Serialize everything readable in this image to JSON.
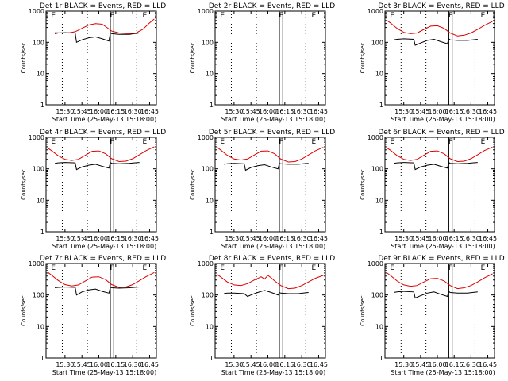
{
  "figure": {
    "colors": {
      "events": "#000000",
      "lld": "#dd0000",
      "axes": "#000000",
      "background": "#ffffff"
    }
  },
  "chart_data": [
    {
      "type": "line",
      "scale": "log",
      "grid": false,
      "title": "Det 1r BLACK = Events, RED = LLD",
      "xlabel": "Start Time (25-May-13 15:18:00)",
      "ylabel": "Counts/sec",
      "xticks": [
        "15:30",
        "15:45",
        "16:00",
        "16:15",
        "16:30",
        "16:45"
      ],
      "yticks": [
        "1",
        "10",
        "100",
        "1000"
      ],
      "ylim": [
        1,
        1000
      ],
      "markers": [
        "E",
        "F",
        "E"
      ],
      "series": [
        {
          "color": "#000000",
          "t": [
            15.35,
            15.4,
            15.5,
            15.65,
            15.67,
            15.75,
            15.85,
            15.95,
            16.05,
            16.15,
            16.17,
            16.19,
            16.3,
            16.45,
            16.52,
            16.6
          ],
          "values": [
            190,
            200,
            205,
            200,
            100,
            120,
            140,
            150,
            130,
            110,
            205,
            190,
            180,
            180,
            190,
            200
          ]
        },
        {
          "color": "#dd0000",
          "t": [
            15.35,
            15.45,
            15.55,
            15.65,
            15.75,
            15.85,
            15.95,
            16.05,
            16.12,
            16.19,
            16.3,
            16.45,
            16.55,
            16.65,
            16.75,
            16.82
          ],
          "values": [
            205,
            200,
            200,
            220,
            280,
            360,
            400,
            380,
            300,
            230,
            200,
            190,
            200,
            260,
            420,
            560
          ]
        }
      ]
    },
    {
      "type": "line",
      "scale": "log",
      "grid": false,
      "title": "Det 2r BLACK = Events, RED = LLD",
      "xlabel": "Start Time (25-May-13 15:18:00)",
      "ylabel": "Counts/sec",
      "xticks": [
        "15:30",
        "15:45",
        "16:00",
        "16:15",
        "16:30",
        "16:45"
      ],
      "yticks": [
        "1",
        "10",
        "100",
        "1000"
      ],
      "ylim": [
        1,
        1000
      ],
      "markers": [
        "E",
        "F",
        "E"
      ],
      "series": []
    },
    {
      "type": "line",
      "scale": "log",
      "grid": false,
      "title": "Det 3r BLACK = Events, RED = LLD",
      "xlabel": "Start Time (25-May-13 15:18:00)",
      "ylabel": "Counts/sec",
      "xticks": [
        "15:30",
        "15:45",
        "16:00",
        "16:15",
        "16:30",
        "16:45"
      ],
      "yticks": [
        "1",
        "10",
        "100",
        "1000"
      ],
      "ylim": [
        1,
        1000
      ],
      "markers": [
        "E",
        "F",
        "E"
      ],
      "series": [
        {
          "color": "#000000",
          "t": [
            15.35,
            15.4,
            15.5,
            15.65,
            15.67,
            15.75,
            15.85,
            15.95,
            16.05,
            16.15,
            16.17,
            16.19,
            16.3,
            16.45,
            16.52,
            16.6
          ],
          "values": [
            120,
            125,
            130,
            125,
            80,
            95,
            115,
            125,
            105,
            90,
            130,
            120,
            115,
            115,
            120,
            125
          ]
        },
        {
          "color": "#dd0000",
          "t": [
            15.25,
            15.3,
            15.4,
            15.5,
            15.6,
            15.7,
            15.8,
            15.9,
            16.0,
            16.1,
            16.19,
            16.3,
            16.4,
            16.5,
            16.6,
            16.7,
            16.82
          ],
          "values": [
            500,
            420,
            280,
            210,
            190,
            200,
            260,
            330,
            340,
            280,
            200,
            160,
            170,
            200,
            260,
            350,
            470
          ]
        }
      ]
    },
    {
      "type": "line",
      "scale": "log",
      "grid": false,
      "title": "Det 4r BLACK = Events, RED = LLD",
      "xlabel": "Start Time (25-May-13 15:18:00)",
      "ylabel": "Counts/sec",
      "xticks": [
        "15:30",
        "15:45",
        "16:00",
        "16:15",
        "16:30",
        "16:45"
      ],
      "yticks": [
        "1",
        "10",
        "100",
        "1000"
      ],
      "ylim": [
        1,
        1000
      ],
      "markers": [
        "E",
        "F",
        "E"
      ],
      "series": [
        {
          "color": "#000000",
          "t": [
            15.35,
            15.4,
            15.5,
            15.65,
            15.67,
            15.75,
            15.85,
            15.95,
            16.05,
            16.15,
            16.17,
            16.19,
            16.3,
            16.45,
            16.52,
            16.6
          ],
          "values": [
            150,
            155,
            160,
            155,
            95,
            115,
            130,
            140,
            120,
            105,
            160,
            150,
            145,
            150,
            155,
            160
          ]
        },
        {
          "color": "#dd0000",
          "t": [
            15.25,
            15.3,
            15.4,
            15.5,
            15.6,
            15.7,
            15.8,
            15.9,
            16.0,
            16.1,
            16.19,
            16.3,
            16.4,
            16.5,
            16.6,
            16.7,
            16.82
          ],
          "values": [
            450,
            380,
            260,
            200,
            185,
            200,
            270,
            360,
            370,
            300,
            210,
            170,
            175,
            210,
            280,
            380,
            500
          ]
        }
      ]
    },
    {
      "type": "line",
      "scale": "log",
      "grid": false,
      "title": "Det 5r BLACK = Events, RED = LLD",
      "xlabel": "Start Time (25-May-13 15:18:00)",
      "ylabel": "Counts/sec",
      "xticks": [
        "15:30",
        "15:45",
        "16:00",
        "16:15",
        "16:30",
        "16:45"
      ],
      "yticks": [
        "1",
        "10",
        "100",
        "1000"
      ],
      "ylim": [
        1,
        1000
      ],
      "markers": [
        "E",
        "F",
        "E"
      ],
      "series": [
        {
          "color": "#000000",
          "t": [
            15.35,
            15.4,
            15.5,
            15.65,
            15.67,
            15.75,
            15.85,
            15.95,
            16.05,
            16.15,
            16.17,
            16.19,
            16.3,
            16.45,
            16.52,
            16.6
          ],
          "values": [
            140,
            145,
            150,
            145,
            90,
            110,
            125,
            135,
            115,
            100,
            150,
            145,
            140,
            140,
            145,
            150
          ]
        },
        {
          "color": "#dd0000",
          "t": [
            15.25,
            15.3,
            15.4,
            15.5,
            15.6,
            15.7,
            15.8,
            15.9,
            16.0,
            16.1,
            16.19,
            16.3,
            16.4,
            16.5,
            16.6,
            16.7,
            16.82
          ],
          "values": [
            480,
            400,
            270,
            205,
            190,
            205,
            275,
            365,
            370,
            300,
            205,
            165,
            170,
            205,
            275,
            370,
            480
          ]
        }
      ]
    },
    {
      "type": "line",
      "scale": "log",
      "grid": false,
      "title": "Det 6r BLACK = Events, RED = LLD",
      "xlabel": "Start Time (25-May-13 15:18:00)",
      "ylabel": "Counts/sec",
      "xticks": [
        "15:30",
        "15:45",
        "16:00",
        "16:15",
        "16:30",
        "16:45"
      ],
      "yticks": [
        "1",
        "10",
        "100",
        "1000"
      ],
      "ylim": [
        1,
        1000
      ],
      "markers": [
        "E",
        "F",
        "E"
      ],
      "series": [
        {
          "color": "#000000",
          "t": [
            15.35,
            15.4,
            15.5,
            15.65,
            15.67,
            15.75,
            15.85,
            15.95,
            16.05,
            16.15,
            16.17,
            16.19,
            16.3,
            16.45,
            16.52,
            16.6
          ],
          "values": [
            150,
            155,
            160,
            155,
            95,
            115,
            130,
            140,
            120,
            105,
            160,
            150,
            145,
            150,
            155,
            160
          ]
        },
        {
          "color": "#dd0000",
          "t": [
            15.25,
            15.3,
            15.4,
            15.5,
            15.6,
            15.7,
            15.8,
            15.9,
            16.0,
            16.1,
            16.19,
            16.3,
            16.4,
            16.5,
            16.6,
            16.7,
            16.82
          ],
          "values": [
            460,
            390,
            265,
            200,
            185,
            200,
            270,
            360,
            370,
            300,
            210,
            170,
            175,
            210,
            280,
            380,
            490
          ]
        }
      ]
    },
    {
      "type": "line",
      "scale": "log",
      "grid": false,
      "title": "Det 7r BLACK = Events, RED = LLD",
      "xlabel": "Start Time (25-May-13 15:18:00)",
      "ylabel": "Counts/sec",
      "xticks": [
        "15:30",
        "15:45",
        "16:00",
        "16:15",
        "16:30",
        "16:45"
      ],
      "yticks": [
        "1",
        "10",
        "100",
        "1000"
      ],
      "ylim": [
        1,
        1000
      ],
      "markers": [
        "E",
        "F",
        "E"
      ],
      "series": [
        {
          "color": "#000000",
          "t": [
            15.35,
            15.4,
            15.5,
            15.65,
            15.67,
            15.75,
            15.85,
            15.95,
            16.05,
            16.15,
            16.17,
            16.19,
            16.3,
            16.45,
            16.52,
            16.6
          ],
          "values": [
            170,
            175,
            180,
            175,
            100,
            125,
            145,
            155,
            130,
            115,
            180,
            170,
            165,
            170,
            175,
            180
          ]
        },
        {
          "color": "#dd0000",
          "t": [
            15.25,
            15.3,
            15.4,
            15.5,
            15.6,
            15.7,
            15.8,
            15.9,
            16.0,
            16.1,
            16.19,
            16.3,
            16.4,
            16.5,
            16.6,
            16.7,
            16.82
          ],
          "values": [
            520,
            430,
            290,
            215,
            195,
            210,
            280,
            370,
            380,
            310,
            215,
            175,
            180,
            215,
            285,
            385,
            520
          ]
        }
      ]
    },
    {
      "type": "line",
      "scale": "log",
      "grid": false,
      "title": "Det 8r BLACK = Events, RED = LLD",
      "xlabel": "Start Time (25-May-13 15:18:00)",
      "ylabel": "Counts/sec",
      "xticks": [
        "15:30",
        "15:45",
        "16:00",
        "16:15",
        "16:30",
        "16:45"
      ],
      "yticks": [
        "1",
        "10",
        "100",
        "1000"
      ],
      "ylim": [
        1,
        1000
      ],
      "markers": [
        "E",
        "F",
        "E"
      ],
      "series": [
        {
          "color": "#000000",
          "t": [
            15.35,
            15.4,
            15.5,
            15.65,
            15.7,
            15.75,
            15.8,
            15.85,
            15.9,
            15.95,
            16.0,
            16.05,
            16.1,
            16.15,
            16.17,
            16.19,
            16.3,
            16.45,
            16.52,
            16.6
          ],
          "values": [
            110,
            115,
            115,
            110,
            90,
            100,
            110,
            120,
            130,
            140,
            130,
            120,
            110,
            100,
            120,
            115,
            110,
            110,
            115,
            120
          ]
        },
        {
          "color": "#dd0000",
          "t": [
            15.25,
            15.3,
            15.4,
            15.5,
            15.6,
            15.7,
            15.8,
            15.9,
            15.95,
            16.0,
            16.05,
            16.1,
            16.19,
            16.3,
            16.4,
            16.5,
            16.6,
            16.7,
            16.82
          ],
          "values": [
            450,
            380,
            260,
            210,
            200,
            230,
            300,
            380,
            320,
            420,
            350,
            280,
            200,
            160,
            165,
            200,
            260,
            340,
            420
          ]
        }
      ]
    },
    {
      "type": "line",
      "scale": "log",
      "grid": false,
      "title": "Det 9r BLACK = Events, RED = LLD",
      "xlabel": "Start Time (25-May-13 15:18:00)",
      "ylabel": "Counts/sec",
      "xticks": [
        "15:30",
        "15:45",
        "16:00",
        "16:15",
        "16:30",
        "16:45"
      ],
      "yticks": [
        "1",
        "10",
        "100",
        "1000"
      ],
      "ylim": [
        1,
        1000
      ],
      "markers": [
        "E",
        "F",
        "E"
      ],
      "series": [
        {
          "color": "#000000",
          "t": [
            15.35,
            15.4,
            15.5,
            15.65,
            15.67,
            15.75,
            15.85,
            15.95,
            16.05,
            16.15,
            16.17,
            16.19,
            16.3,
            16.45,
            16.52,
            16.6
          ],
          "values": [
            120,
            125,
            130,
            125,
            80,
            95,
            115,
            125,
            105,
            90,
            130,
            120,
            115,
            115,
            120,
            125
          ]
        },
        {
          "color": "#dd0000",
          "t": [
            15.25,
            15.3,
            15.4,
            15.5,
            15.6,
            15.7,
            15.8,
            15.9,
            16.0,
            16.1,
            16.19,
            16.3,
            16.4,
            16.5,
            16.6,
            16.7,
            16.82
          ],
          "values": [
            500,
            420,
            280,
            210,
            190,
            200,
            260,
            330,
            340,
            280,
            200,
            160,
            170,
            200,
            260,
            350,
            470
          ]
        }
      ]
    }
  ]
}
